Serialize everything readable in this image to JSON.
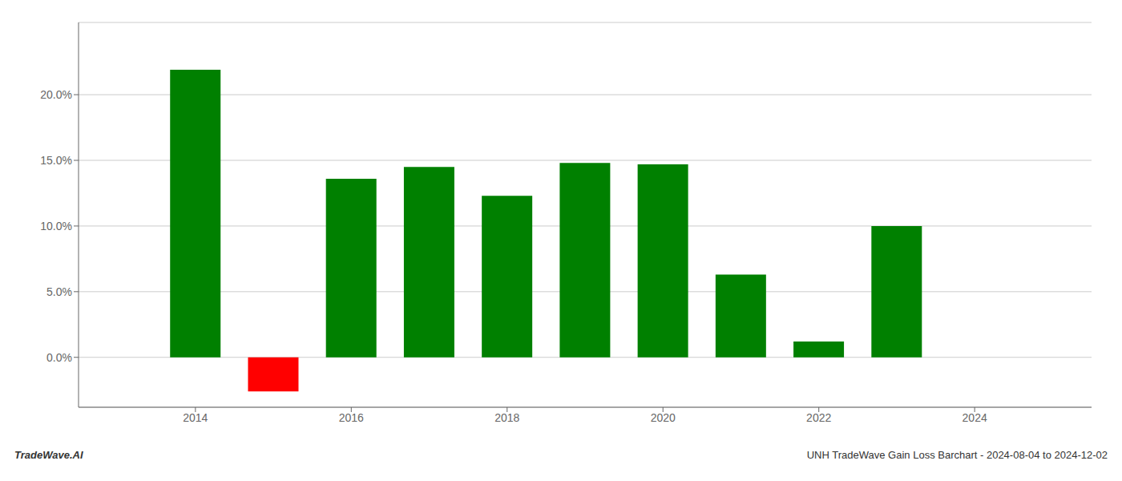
{
  "chart_data": {
    "type": "bar",
    "x": [
      2014,
      2015,
      2016,
      2017,
      2018,
      2019,
      2020,
      2021,
      2022,
      2023
    ],
    "values": [
      0.219,
      -0.026,
      0.136,
      0.145,
      0.123,
      0.148,
      0.147,
      0.063,
      0.012,
      0.1
    ],
    "colors": [
      "#008000",
      "#ff0000",
      "#008000",
      "#008000",
      "#008000",
      "#008000",
      "#008000",
      "#008000",
      "#008000",
      "#008000"
    ],
    "xlim": [
      2012.5,
      2025.5
    ],
    "xticks": [
      2014,
      2016,
      2018,
      2020,
      2022,
      2024
    ],
    "ylim": [
      -0.038,
      0.255
    ],
    "yticks": [
      {
        "value": 0.0,
        "label": "0.0%"
      },
      {
        "value": 0.05,
        "label": "5.0%"
      },
      {
        "value": 0.1,
        "label": "10.0%"
      },
      {
        "value": 0.15,
        "label": "15.0%"
      },
      {
        "value": 0.2,
        "label": "20.0%"
      }
    ],
    "grid": true,
    "annotations": [
      "TradeWave.AI",
      "UNH TradeWave Gain Loss Barchart - 2024-08-04 to 2024-12-02"
    ]
  }
}
